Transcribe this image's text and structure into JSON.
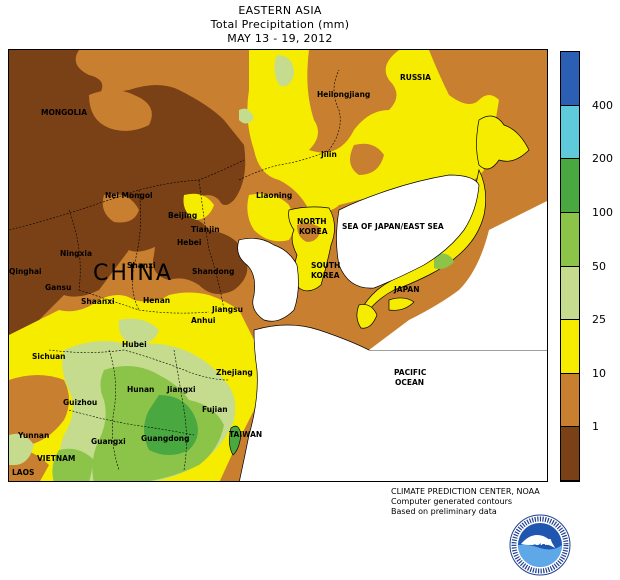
{
  "header": {
    "line1": "EASTERN ASIA",
    "line2": "Total Precipitation (mm)",
    "line3": "MAY 13 - 19, 2012"
  },
  "map_labels": {
    "russia": "RUSSIA",
    "mongolia": "MONGOLIA",
    "heilongjiang": "Heilongjiang",
    "jilin": "Jilin",
    "liaoning": "Liaoning",
    "nei_mongol": "Nei Mongol",
    "beijing": "Beijing",
    "tianjin": "Tianjin",
    "hebei": "Hebei",
    "ningxia": "Ningxia",
    "shanxi": "Shanxi",
    "shandong": "Shandong",
    "china": "CHINA",
    "qinghai": "Qinghai",
    "gansu": "Gansu",
    "shaanxi": "Shaanxi",
    "henan": "Henan",
    "jiangsu": "Jiangsu",
    "anhui": "Anhui",
    "hubei": "Hubei",
    "sichuan": "Sichuan",
    "zhejiang": "Zhejiang",
    "hunan": "Hunan",
    "jiangxi": "Jiangxi",
    "guizhou": "Guizhou",
    "fujian": "Fujian",
    "yunnan": "Yunnan",
    "guangxi": "Guangxi",
    "guangdong": "Guangdong",
    "taiwan": "TAIWAN",
    "vietnam": "VIETNAM",
    "laos": "LAOS",
    "north_korea_1": "NORTH",
    "north_korea_2": "KOREA",
    "south_korea_1": "SOUTH",
    "south_korea_2": "KOREA",
    "sea_of_japan": "SEA OF JAPAN/EAST SEA",
    "japan": "JAPAN",
    "pacific_1": "PACIFIC",
    "pacific_2": "OCEAN"
  },
  "legend": {
    "labels": [
      "400",
      "200",
      "100",
      "50",
      "25",
      "10",
      "1"
    ],
    "colors": [
      "#2b5fb3",
      "#5fcad9",
      "#4aa840",
      "#8cc44a",
      "#c5dc8e",
      "#f6ec00",
      "#c87f30",
      "#7a4016"
    ]
  },
  "colors": {
    "dark_brown": "#7a4016",
    "brown": "#c87f30",
    "yellow": "#f6ec00",
    "light_green": "#c5dc8e",
    "green": "#8cc44a",
    "dark_green": "#4aa840",
    "ocean": "#ffffff"
  },
  "credits": {
    "line1": "CLIMATE PREDICTION CENTER, NOAA",
    "line2": "Computer generated contours",
    "line3": "Based on preliminary data"
  },
  "logo": {
    "text": "NOAA"
  }
}
